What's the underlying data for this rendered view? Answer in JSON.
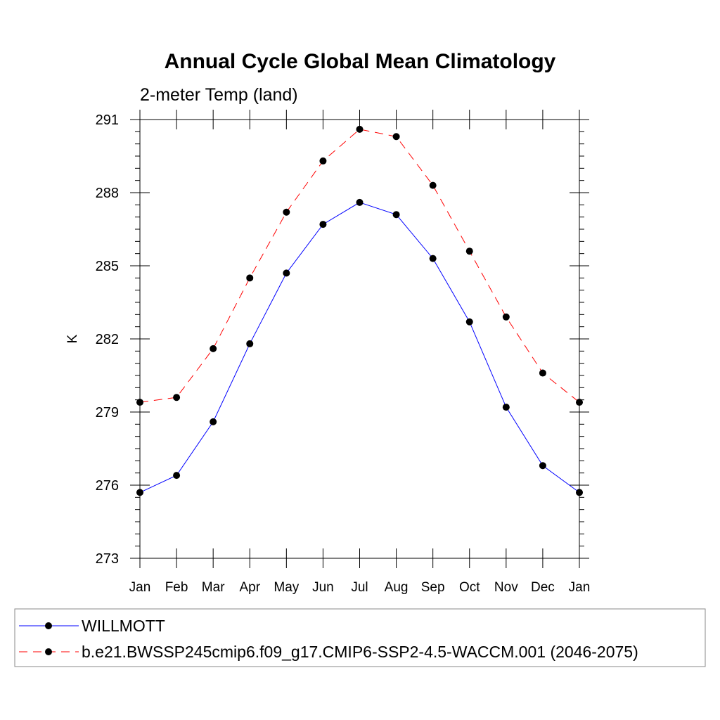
{
  "chart_data": {
    "type": "line",
    "title": "Annual Cycle Global Mean Climatology",
    "subtitle": "2-meter Temp (land)",
    "xlabel": "",
    "ylabel": "K",
    "categories": [
      "Jan",
      "Feb",
      "Mar",
      "Apr",
      "May",
      "Jun",
      "Jul",
      "Aug",
      "Sep",
      "Oct",
      "Nov",
      "Dec",
      "Jan"
    ],
    "ylim": [
      273,
      291
    ],
    "yticks": [
      273,
      276,
      279,
      282,
      285,
      288,
      291
    ],
    "yminor_step": 0.5,
    "grid": false,
    "legend_position": "bottom",
    "series": [
      {
        "name": "WILLMOTT",
        "color": "#0000ff",
        "line_style": "solid",
        "marker": "filled-circle",
        "values": [
          275.7,
          276.4,
          278.6,
          281.8,
          284.7,
          286.7,
          287.6,
          287.1,
          285.3,
          282.7,
          279.2,
          276.8,
          275.7
        ]
      },
      {
        "name": "b.e21.BWSSP245cmip6.f09_g17.CMIP6-SSP2-4.5-WACCM.001 (2046-2075)",
        "color": "#ff0000",
        "line_style": "dashed",
        "marker": "filled-circle",
        "values": [
          279.4,
          279.6,
          281.6,
          284.5,
          287.2,
          289.3,
          290.6,
          290.3,
          288.3,
          285.6,
          282.9,
          280.6,
          279.4
        ]
      }
    ]
  }
}
